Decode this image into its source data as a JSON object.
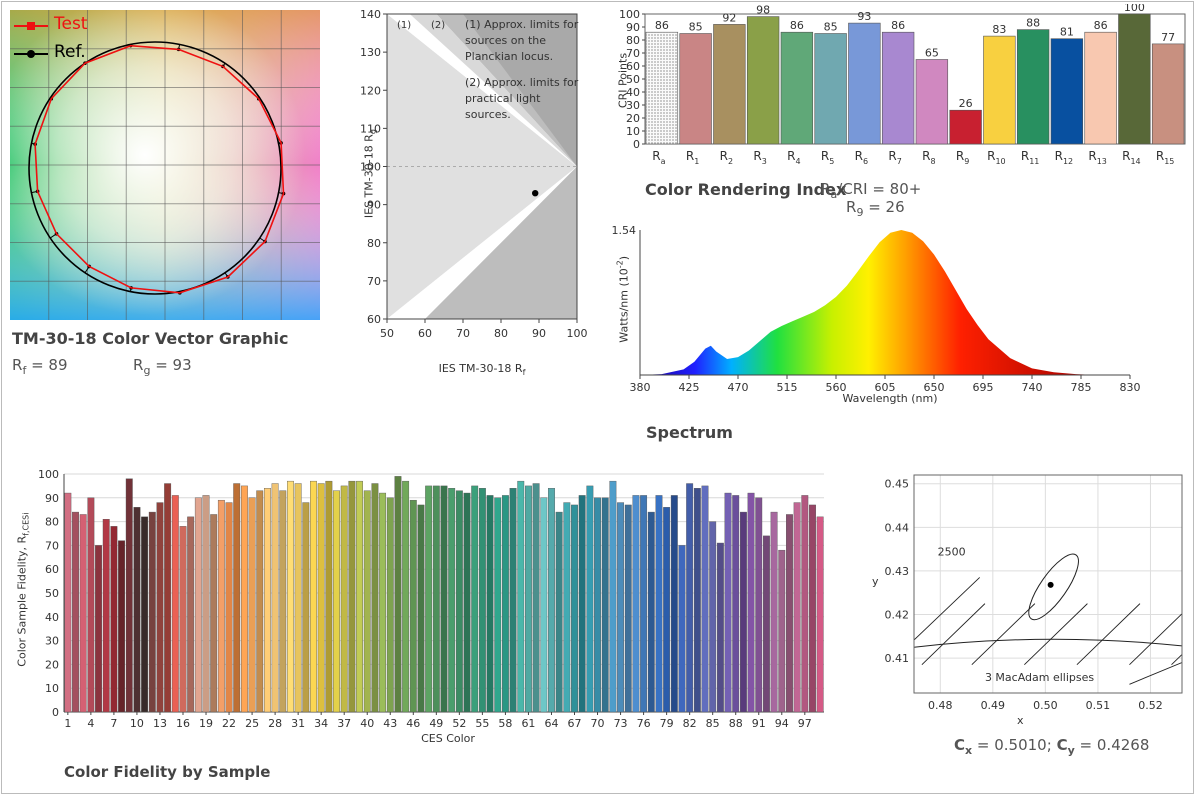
{
  "vector_graphic": {
    "legend_test": "Test",
    "legend_ref": "Ref.",
    "caption": "TM-30-18 Color Vector Graphic",
    "rf_label": "R",
    "rf_sub": "f",
    "rf_value": "= 89",
    "rg_label": "R",
    "rg_sub": "g",
    "rg_value": "= 93",
    "colors": {
      "test": "#ee1111",
      "ref": "#000000"
    }
  },
  "rfrg": {
    "note1_tag": "(1)",
    "note2_tag": "(2)",
    "note1": [
      "(1) Approx. limits for",
      "sources on the",
      "Planckian locus."
    ],
    "note2": [
      "(2) Approx. limits for",
      "practical light",
      "sources."
    ],
    "ylabel_main": "IES TM-30-18 R",
    "ylabel_sub": "g",
    "xlabel_main": "IES TM-30-18 R",
    "xlabel_sub": "f"
  },
  "cri": {
    "ylabel": "CRI Points",
    "caption_main": "Color Rendering Index",
    "ra_label": "R",
    "ra_sub": "a",
    "ra_value": "/CRI = 80+",
    "r9_label": "R",
    "r9_sub": "9",
    "r9_value": "= 26"
  },
  "spectrum": {
    "ylabel_main": "Watts/nm (10",
    "ylabel_sup": "-2",
    "ylabel_end": ")",
    "xlabel": "Wavelength (nm)",
    "caption": "Spectrum",
    "peak_label": "1.54"
  },
  "fidelity": {
    "ylabel_main": "Color Sample Fidelity, R",
    "ylabel_sub": "f,CESi",
    "xlabel": "CES Color",
    "caption": "Color Fidelity by Sample"
  },
  "chromaticity": {
    "cct_label": "2500",
    "ellipse_label": "3  MacAdam ellipses",
    "xlabel": "x",
    "ylabel": "y",
    "cx_label": "C",
    "cx_sub": "x",
    "cx_value": "= 0.5010;",
    "cy_label": "C",
    "cy_sub": "y",
    "cy_value": "= 0.4268"
  },
  "chart_data": [
    {
      "type": "radar",
      "name": "color-vector-graphic",
      "series": [
        {
          "name": "Test",
          "values": [
            0.96,
            0.97,
            0.99,
            1.02,
            1.04,
            1.05,
            1.04,
            1.01,
            0.97,
            0.94,
            0.94,
            0.95,
            0.97,
            0.99,
            1.0,
            0.99
          ]
        },
        {
          "name": "Ref.",
          "values": [
            1,
            1,
            1,
            1,
            1,
            1,
            1,
            1,
            1,
            1,
            1,
            1,
            1,
            1,
            1,
            1
          ]
        }
      ]
    },
    {
      "type": "scatter",
      "name": "rf-rg",
      "xlim": [
        50,
        100
      ],
      "ylim": [
        60,
        140
      ],
      "xticks": [
        50,
        60,
        70,
        80,
        90,
        100
      ],
      "yticks": [
        60,
        70,
        80,
        90,
        100,
        110,
        120,
        130,
        140
      ],
      "points": [
        {
          "x": 89,
          "y": 93
        }
      ]
    },
    {
      "type": "bar",
      "name": "cri",
      "categories": [
        {
          "label": "R",
          "sub": "a"
        },
        {
          "label": "R",
          "sub": "1"
        },
        {
          "label": "R",
          "sub": "2"
        },
        {
          "label": "R",
          "sub": "3"
        },
        {
          "label": "R",
          "sub": "4"
        },
        {
          "label": "R",
          "sub": "5"
        },
        {
          "label": "R",
          "sub": "6"
        },
        {
          "label": "R",
          "sub": "7"
        },
        {
          "label": "R",
          "sub": "8"
        },
        {
          "label": "R",
          "sub": "9"
        },
        {
          "label": "R",
          "sub": "10"
        },
        {
          "label": "R",
          "sub": "11"
        },
        {
          "label": "R",
          "sub": "12"
        },
        {
          "label": "R",
          "sub": "13"
        },
        {
          "label": "R",
          "sub": "14"
        },
        {
          "label": "R",
          "sub": "15"
        }
      ],
      "values": [
        86,
        85,
        92,
        98,
        86,
        85,
        93,
        86,
        65,
        26,
        83,
        88,
        81,
        86,
        100,
        77
      ],
      "colors": [
        "#f0f0f0",
        "#c98585",
        "#a89060",
        "#8aa048",
        "#60a878",
        "#70a8b0",
        "#7898d8",
        "#a888d0",
        "#d088c0",
        "#c82030",
        "#f8d040",
        "#289060",
        "#0850a0",
        "#f8c8b0",
        "#586838",
        "#c89080"
      ],
      "ylim": [
        0,
        100
      ],
      "yticks": [
        0,
        10,
        20,
        30,
        40,
        50,
        60,
        70,
        80,
        90,
        100
      ]
    },
    {
      "type": "area",
      "name": "spectrum",
      "x": [
        380,
        400,
        420,
        430,
        440,
        445,
        450,
        460,
        470,
        480,
        490,
        500,
        510,
        520,
        530,
        540,
        550,
        560,
        570,
        580,
        590,
        600,
        610,
        620,
        630,
        640,
        650,
        660,
        670,
        680,
        690,
        700,
        720,
        740,
        760,
        780,
        800
      ],
      "y": [
        0,
        0.01,
        0.06,
        0.14,
        0.28,
        0.31,
        0.25,
        0.17,
        0.19,
        0.26,
        0.36,
        0.46,
        0.52,
        0.57,
        0.62,
        0.67,
        0.74,
        0.83,
        0.95,
        1.1,
        1.26,
        1.41,
        1.51,
        1.54,
        1.51,
        1.42,
        1.28,
        1.1,
        0.9,
        0.7,
        0.53,
        0.38,
        0.18,
        0.07,
        0.03,
        0.01,
        0
      ],
      "xlim": [
        380,
        830
      ],
      "ylim": [
        0,
        1.54
      ],
      "xticks": [
        380,
        425,
        470,
        515,
        560,
        605,
        650,
        695,
        740,
        785,
        830
      ]
    },
    {
      "type": "bar",
      "name": "fidelity-by-sample",
      "values": [
        92,
        84,
        83,
        90,
        70,
        81,
        78,
        72,
        98,
        86,
        82,
        84,
        88,
        96,
        91,
        78,
        82,
        90,
        91,
        83,
        89,
        88,
        96,
        95,
        90,
        93,
        94,
        96,
        93,
        97,
        96,
        88,
        97,
        96,
        97,
        93,
        95,
        97,
        97,
        93,
        96,
        92,
        90,
        99,
        97,
        89,
        87,
        95,
        95,
        95,
        94,
        93,
        92,
        95,
        94,
        91,
        90,
        91,
        94,
        97,
        95,
        96,
        90,
        94,
        84,
        88,
        87,
        91,
        95,
        90,
        90,
        97,
        88,
        87,
        91,
        91,
        84,
        91,
        86,
        91,
        70,
        96,
        94,
        95,
        80,
        71,
        92,
        91,
        84,
        92,
        90,
        74,
        84,
        68,
        83,
        88,
        91,
        87,
        82
      ],
      "ylim": [
        0,
        100
      ],
      "yticks": [
        0,
        10,
        20,
        30,
        40,
        50,
        60,
        70,
        80,
        90,
        100
      ],
      "xticks": [
        1,
        4,
        7,
        10,
        13,
        16,
        19,
        22,
        25,
        28,
        31,
        34,
        37,
        40,
        43,
        46,
        49,
        52,
        55,
        58,
        61,
        64,
        67,
        70,
        73,
        76,
        79,
        82,
        85,
        88,
        91,
        94,
        97
      ]
    },
    {
      "type": "scatter",
      "name": "chromaticity",
      "xlim": [
        0.475,
        0.526
      ],
      "ylim": [
        0.402,
        0.452
      ],
      "xticks": [
        0.48,
        0.49,
        0.5,
        0.51,
        0.52
      ],
      "yticks": [
        0.41,
        0.42,
        0.43,
        0.44,
        0.45
      ],
      "points": [
        {
          "x": 0.501,
          "y": 0.4268
        }
      ]
    }
  ]
}
